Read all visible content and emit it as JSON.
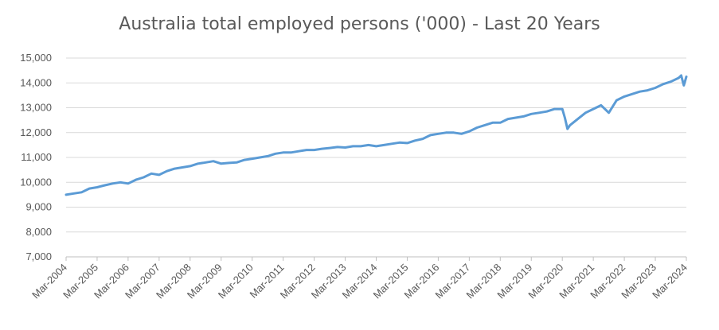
{
  "chart_data": {
    "type": "line",
    "title": "Australia total employed persons ('000) - Last 20 Years",
    "xlabel": "",
    "ylabel": "",
    "ylim": [
      7000,
      15000
    ],
    "yticks": [
      7000,
      8000,
      9000,
      10000,
      11000,
      12000,
      13000,
      14000,
      15000
    ],
    "ytick_labels": [
      "7,000",
      "8,000",
      "9,000",
      "10,000",
      "11,000",
      "12,000",
      "13,000",
      "14,000",
      "15,000"
    ],
    "xtick_labels": [
      "Mar-2004",
      "Mar-2005",
      "Mar-2006",
      "Mar-2007",
      "Mar-2008",
      "Mar-2009",
      "Mar-2010",
      "Mar-2011",
      "Mar-2012",
      "Mar-2013",
      "Mar-2014",
      "Mar-2015",
      "Mar-2016",
      "Mar-2017",
      "Mar-2018",
      "Mar-2019",
      "Mar-2020",
      "Mar-2021",
      "Mar-2022",
      "Mar-2023",
      "Mar-2024"
    ],
    "grid": true,
    "legend": "none",
    "line_color": "#5b9bd5",
    "series": [
      {
        "x": [
          "Mar-2004",
          "Jun-2004",
          "Sep-2004",
          "Dec-2004",
          "Mar-2005",
          "Jun-2005",
          "Sep-2005",
          "Dec-2005",
          "Mar-2006",
          "Jun-2006",
          "Sep-2006",
          "Dec-2006",
          "Mar-2007",
          "Jun-2007",
          "Sep-2007",
          "Dec-2007",
          "Mar-2008",
          "Jun-2008",
          "Sep-2008",
          "Dec-2008",
          "Mar-2009",
          "Jun-2009",
          "Sep-2009",
          "Dec-2009",
          "Mar-2010",
          "Jun-2010",
          "Sep-2010",
          "Dec-2010",
          "Mar-2011",
          "Jun-2011",
          "Sep-2011",
          "Dec-2011",
          "Mar-2012",
          "Jun-2012",
          "Sep-2012",
          "Dec-2012",
          "Mar-2013",
          "Jun-2013",
          "Sep-2013",
          "Dec-2013",
          "Mar-2014",
          "Jun-2014",
          "Sep-2014",
          "Dec-2014",
          "Mar-2015",
          "Jun-2015",
          "Sep-2015",
          "Dec-2015",
          "Mar-2016",
          "Jun-2016",
          "Sep-2016",
          "Dec-2016",
          "Mar-2017",
          "Jun-2017",
          "Sep-2017",
          "Dec-2017",
          "Mar-2018",
          "Jun-2018",
          "Sep-2018",
          "Dec-2018",
          "Mar-2019",
          "Jun-2019",
          "Sep-2019",
          "Dec-2019",
          "Mar-2020",
          "Apr-2020",
          "May-2020",
          "Jun-2020",
          "Sep-2020",
          "Dec-2020",
          "Mar-2021",
          "Jun-2021",
          "Sep-2021",
          "Dec-2021",
          "Mar-2022",
          "Jun-2022",
          "Sep-2022",
          "Dec-2022",
          "Mar-2023",
          "Jun-2023",
          "Sep-2023",
          "Dec-2023",
          "Jan-2024",
          "Feb-2024",
          "Mar-2024"
        ],
        "values": [
          9500,
          9550,
          9600,
          9750,
          9800,
          9880,
          9950,
          10000,
          9950,
          10100,
          10200,
          10350,
          10300,
          10450,
          10550,
          10600,
          10650,
          10750,
          10800,
          10850,
          10750,
          10780,
          10800,
          10900,
          10950,
          11000,
          11050,
          11150,
          11200,
          11200,
          11250,
          11300,
          11300,
          11350,
          11380,
          11420,
          11400,
          11450,
          11450,
          11500,
          11450,
          11500,
          11550,
          11600,
          11580,
          11680,
          11750,
          11900,
          11950,
          12000,
          12000,
          11950,
          12050,
          12200,
          12300,
          12400,
          12400,
          12550,
          12600,
          12650,
          12750,
          12800,
          12850,
          12950,
          12950,
          12600,
          12150,
          12300,
          12550,
          12800,
          12950,
          13100,
          12800,
          13300,
          13450,
          13550,
          13650,
          13700,
          13800,
          13950,
          14050,
          14200,
          14300,
          13900,
          14250
        ]
      }
    ]
  }
}
